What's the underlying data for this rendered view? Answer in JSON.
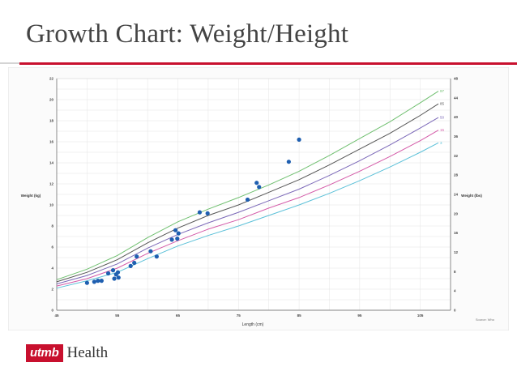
{
  "slide": {
    "title": "Growth Chart: Weight/Height"
  },
  "logo": {
    "mark": "utmb",
    "text": "Health",
    "color": "#c8102e"
  },
  "chart_data": {
    "type": "scatter",
    "xlabel": "Length (cm)",
    "ylabel": "Weight (kg)",
    "ylabel_right": "Weight (lbs)",
    "source_note": "Source: Who",
    "xlim": [
      45,
      110
    ],
    "ylim": [
      0,
      22
    ],
    "ylim_right": [
      0,
      48
    ],
    "x_ticks": [
      45,
      55,
      65,
      75,
      85,
      95,
      105
    ],
    "y_ticks": [
      0,
      2,
      4,
      6,
      8,
      10,
      12,
      14,
      16,
      18,
      20,
      22
    ],
    "y_ticks_right": [
      0,
      4,
      8,
      12,
      16,
      20,
      24,
      28,
      32,
      36,
      40,
      44,
      48
    ],
    "grid": true,
    "percentile_curves": [
      {
        "name": "97",
        "color": "#6fbf6f",
        "x": [
          45,
          50,
          55,
          60,
          65,
          70,
          75,
          80,
          85,
          90,
          95,
          100,
          105,
          108
        ],
        "y": [
          2.9,
          3.9,
          5.2,
          6.9,
          8.4,
          9.6,
          10.7,
          11.9,
          13.2,
          14.7,
          16.3,
          17.9,
          19.7,
          20.8
        ]
      },
      {
        "name": "85",
        "color": "#555555",
        "x": [
          45,
          50,
          55,
          60,
          65,
          70,
          75,
          80,
          85,
          90,
          95,
          100,
          105,
          108
        ],
        "y": [
          2.7,
          3.6,
          4.8,
          6.4,
          7.8,
          9.0,
          10.0,
          11.2,
          12.4,
          13.8,
          15.3,
          16.8,
          18.5,
          19.6
        ]
      },
      {
        "name": "50",
        "color": "#7b68b8",
        "x": [
          45,
          50,
          55,
          60,
          65,
          70,
          75,
          80,
          85,
          90,
          95,
          100,
          105,
          108
        ],
        "y": [
          2.5,
          3.3,
          4.4,
          5.9,
          7.2,
          8.3,
          9.3,
          10.4,
          11.5,
          12.8,
          14.2,
          15.7,
          17.3,
          18.3
        ]
      },
      {
        "name": "15",
        "color": "#d45aa8",
        "x": [
          45,
          50,
          55,
          60,
          65,
          70,
          75,
          80,
          85,
          90,
          95,
          100,
          105,
          108
        ],
        "y": [
          2.3,
          3.0,
          4.0,
          5.4,
          6.6,
          7.7,
          8.6,
          9.7,
          10.7,
          11.9,
          13.2,
          14.6,
          16.1,
          17.1
        ]
      },
      {
        "name": "3",
        "color": "#5bc0d8",
        "x": [
          45,
          50,
          55,
          60,
          65,
          70,
          75,
          80,
          85,
          90,
          95,
          100,
          105,
          108
        ],
        "y": [
          2.1,
          2.8,
          3.6,
          4.9,
          6.1,
          7.1,
          8.0,
          9.0,
          10.0,
          11.1,
          12.3,
          13.6,
          15.0,
          15.9
        ]
      }
    ],
    "points": [
      {
        "x": 50.0,
        "y": 2.6
      },
      {
        "x": 51.2,
        "y": 2.7
      },
      {
        "x": 51.8,
        "y": 2.8
      },
      {
        "x": 52.4,
        "y": 2.8
      },
      {
        "x": 53.5,
        "y": 3.5
      },
      {
        "x": 54.3,
        "y": 3.8
      },
      {
        "x": 54.5,
        "y": 3.0
      },
      {
        "x": 54.8,
        "y": 3.4
      },
      {
        "x": 55.1,
        "y": 3.6
      },
      {
        "x": 55.2,
        "y": 3.1
      },
      {
        "x": 57.2,
        "y": 4.2
      },
      {
        "x": 57.8,
        "y": 4.5
      },
      {
        "x": 58.2,
        "y": 5.1
      },
      {
        "x": 60.5,
        "y": 5.6
      },
      {
        "x": 61.5,
        "y": 5.1
      },
      {
        "x": 64.0,
        "y": 6.7
      },
      {
        "x": 64.6,
        "y": 7.6
      },
      {
        "x": 64.9,
        "y": 6.8
      },
      {
        "x": 65.1,
        "y": 7.3
      },
      {
        "x": 68.6,
        "y": 9.3
      },
      {
        "x": 69.9,
        "y": 9.2
      },
      {
        "x": 76.5,
        "y": 10.5
      },
      {
        "x": 78.0,
        "y": 12.1
      },
      {
        "x": 78.4,
        "y": 11.7
      },
      {
        "x": 83.3,
        "y": 14.1
      },
      {
        "x": 85.0,
        "y": 16.2
      }
    ],
    "point_color": "#1f5fb0"
  }
}
